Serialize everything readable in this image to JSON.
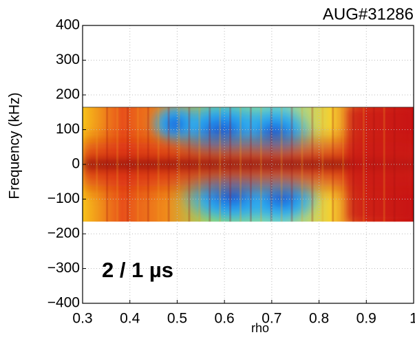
{
  "chart_data": {
    "type": "spectrogram",
    "title": "AUG#31286",
    "x_label": "rho",
    "y_label": "Frequency (kHz)",
    "annotation": "2 / 1 µs",
    "xlim": [
      0.3,
      1
    ],
    "ylim": [
      -400,
      400
    ],
    "xticks": [
      0.3,
      0.4,
      0.5,
      0.6,
      0.7,
      0.8,
      0.9,
      1
    ],
    "yticks": [
      {
        "value": -400,
        "label": "−400"
      },
      {
        "value": -300,
        "label": "−300"
      },
      {
        "value": -200,
        "label": "−200"
      },
      {
        "value": -100,
        "label": "−100"
      },
      0,
      100,
      200,
      300,
      400
    ],
    "extent": {
      "x": [
        0.3,
        1
      ],
      "y": [
        -165,
        165
      ]
    },
    "grid": true
  }
}
